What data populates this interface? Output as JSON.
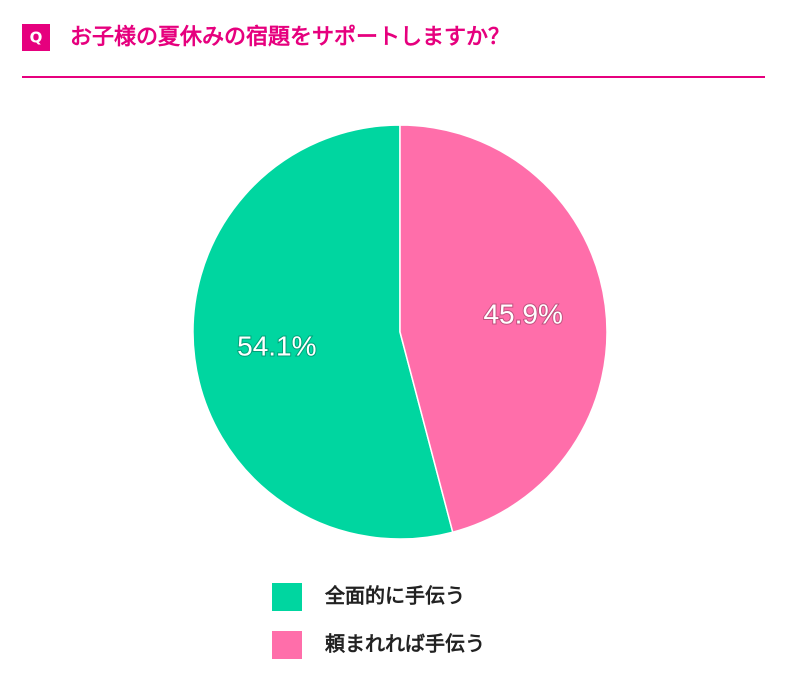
{
  "header": {
    "badge": "Q"
  },
  "chart_data": {
    "type": "pie",
    "title": "お子様の夏休みの宿題をサポートしますか？",
    "categories": [
      "全面的に手伝う",
      "頼まれれば手伝う"
    ],
    "values": [
      54.1,
      45.9
    ],
    "value_labels": [
      "54.1%",
      "45.9%"
    ],
    "colors": [
      "#00d6a0",
      "#ff6eaa"
    ],
    "legend": "bottom"
  }
}
